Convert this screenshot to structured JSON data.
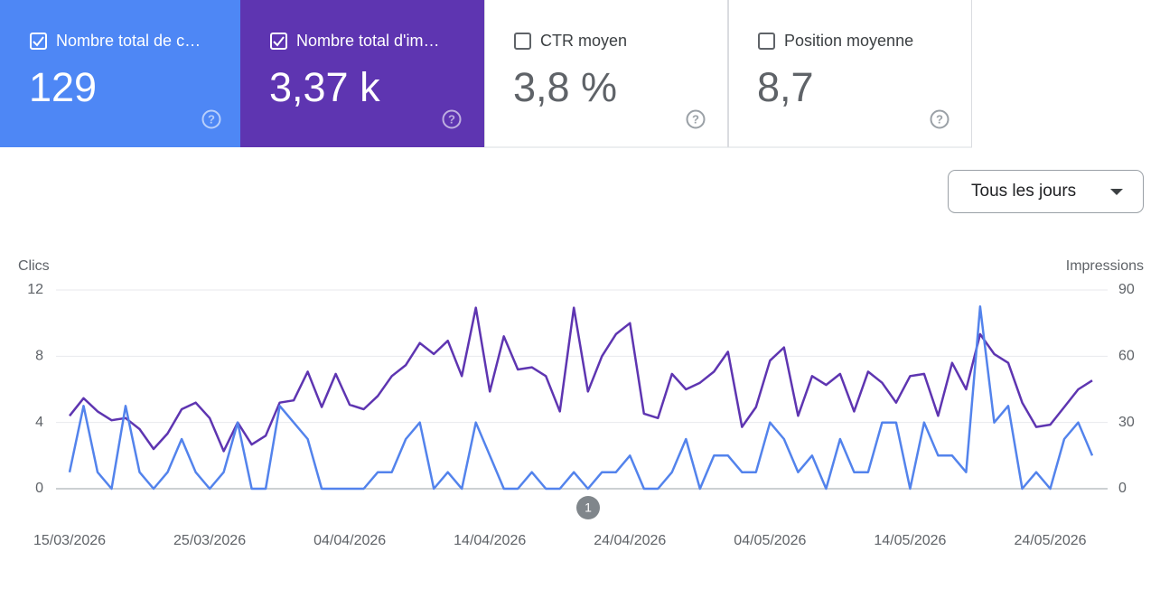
{
  "cards": [
    {
      "label": "Nombre total de c…",
      "value": "129",
      "checked": true,
      "color": "#4e87f5"
    },
    {
      "label": "Nombre total d'im…",
      "value": "3,37 k",
      "checked": true,
      "color": "#5e35b1"
    },
    {
      "label": "CTR moyen",
      "value": "3,8 %",
      "checked": false
    },
    {
      "label": "Position moyenne",
      "value": "8,7",
      "checked": false
    }
  ],
  "dropdown": "Tous les jours",
  "chart_data": {
    "type": "line",
    "y_label": "Clics",
    "y2_label": "Impressions",
    "categories": [
      "15/03/2026",
      null,
      null,
      null,
      null,
      null,
      null,
      null,
      null,
      null,
      "25/03/2026",
      null,
      null,
      null,
      null,
      null,
      null,
      null,
      null,
      null,
      "04/04/2026",
      null,
      null,
      null,
      null,
      null,
      null,
      null,
      null,
      null,
      "14/04/2026",
      null,
      null,
      null,
      null,
      null,
      null,
      null,
      null,
      null,
      "24/04/2026",
      null,
      null,
      null,
      null,
      null,
      null,
      null,
      null,
      null,
      "04/05/2026",
      null,
      null,
      null,
      null,
      null,
      null,
      null,
      null,
      null,
      "14/05/2026",
      null,
      null,
      null,
      null,
      null,
      null,
      null,
      null,
      null,
      "24/05/2026",
      null,
      null,
      null
    ],
    "series": [
      {
        "name": "Clics",
        "color": "#5383ec",
        "values": [
          1,
          5,
          1,
          0,
          5,
          1,
          0,
          1,
          3,
          1,
          0,
          1,
          4,
          0,
          0,
          5,
          4,
          3,
          0,
          0,
          0,
          0,
          1,
          1,
          3,
          4,
          0,
          1,
          0,
          4,
          2,
          0,
          0,
          1,
          0,
          0,
          1,
          0,
          1,
          1,
          2,
          0,
          0,
          1,
          3,
          0,
          2,
          2,
          1,
          1,
          4,
          3,
          1,
          2,
          0,
          3,
          1,
          1,
          4,
          4,
          0,
          4,
          2,
          2,
          1,
          11,
          4,
          5,
          0,
          1,
          0,
          3,
          4,
          2
        ]
      },
      {
        "name": "Impressions",
        "color": "#5e35b1",
        "axis": "y2",
        "values": [
          33,
          41,
          35,
          31,
          32,
          27,
          18,
          25,
          36,
          39,
          32,
          17,
          30,
          20,
          24,
          39,
          40,
          53,
          37,
          52,
          38,
          36,
          42,
          51,
          56,
          66,
          61,
          67,
          51,
          82,
          44,
          69,
          54,
          55,
          51,
          35,
          82,
          44,
          60,
          70,
          75,
          34,
          32,
          52,
          45,
          48,
          53,
          62,
          28,
          37,
          58,
          64,
          33,
          51,
          47,
          52,
          35,
          53,
          48,
          39,
          51,
          52,
          33,
          57,
          45,
          70,
          61,
          57,
          39,
          28,
          29,
          37,
          45,
          49
        ]
      }
    ],
    "ylim": [
      0,
      12
    ],
    "yticks": [
      0,
      4,
      8,
      12
    ],
    "y2lim": [
      0,
      90
    ],
    "y2ticks": [
      0,
      30,
      60,
      90
    ],
    "grid": true,
    "annotation": "1"
  }
}
